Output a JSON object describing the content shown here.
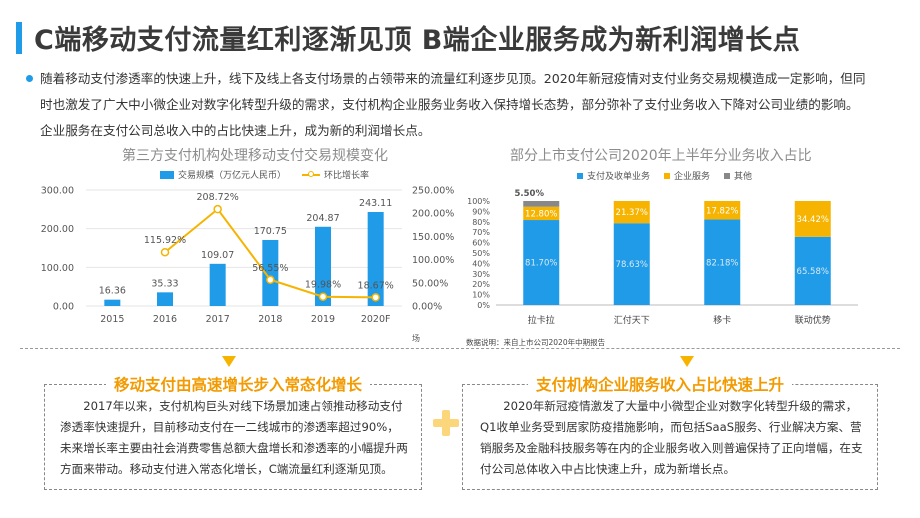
{
  "header": {
    "title": "C端移动支付流量红利逐渐见顶 B端企业服务成为新利润增长点"
  },
  "intro": {
    "text": "随着移动支付渗透率的快速上升，线下及线上各支付场景的占领带来的流量红利逐步见顶。2020年新冠疫情对支付业务交易规模造成一定影响，但同时也激发了广大中小微企业对数字化转型升级的需求，支付机构企业服务业务收入保持增长态势，部分弥补了支付业务收入下降对公司业绩的影响。企业服务在支付公司总收入中的占比快速上升，成为新的利润增长点。"
  },
  "colors": {
    "blue": "#1f9be8",
    "orange": "#f6b400",
    "gray": "#888888",
    "heading_orange": "#f29a00"
  },
  "left_chart": {
    "legend_bar": "交易规模（万亿元人民币）",
    "legend_line": "环比增长率",
    "stray_label": "场",
    "chart_data": {
      "type": "bar+line",
      "title": "第三方支付机构处理移动支付交易规模变化",
      "categories": [
        "2015",
        "2016",
        "2017",
        "2018",
        "2019",
        "2020F"
      ],
      "series": [
        {
          "name": "交易规模（万亿元人民币）",
          "axis": "left",
          "values": [
            16.36,
            35.33,
            109.07,
            170.75,
            204.87,
            243.11
          ],
          "labels": [
            "16.36",
            "35.33",
            "109.07",
            "170.75",
            "204.87",
            "243.11"
          ]
        },
        {
          "name": "环比增长率",
          "axis": "right",
          "values": [
            null,
            115.92,
            208.72,
            56.55,
            19.98,
            18.67
          ],
          "labels": [
            "",
            "115.92%",
            "208.72%",
            "56.55%",
            "19.98%",
            "18.67%"
          ]
        }
      ],
      "ylim_left": [
        0,
        300
      ],
      "yticks_left": [
        "0.00",
        "100.00",
        "200.00",
        "300.00"
      ],
      "ylim_right": [
        0,
        250
      ],
      "yticks_right": [
        "0.00%",
        "50.00%",
        "100.00%",
        "150.00%",
        "200.00%",
        "250.00%"
      ]
    }
  },
  "right_chart": {
    "note": "数据说明：来自上市公司2020年中期报告",
    "chart_data": {
      "type": "stacked_bar_100",
      "title": "部分上市支付公司2020年上半年分业务收入占比",
      "categories": [
        "拉卡拉",
        "汇付天下",
        "移卡",
        "联动优势"
      ],
      "series": [
        {
          "name": "支付及收单业务",
          "values": [
            81.7,
            78.63,
            82.18,
            65.58
          ],
          "labels": [
            "81.70%",
            "78.63%",
            "82.18%",
            "65.58%"
          ]
        },
        {
          "name": "企业服务",
          "values": [
            12.8,
            21.37,
            17.82,
            34.42
          ],
          "labels": [
            "12.80%",
            "21.37%",
            "17.82%",
            "34.42%"
          ]
        },
        {
          "name": "其他",
          "values": [
            5.5,
            0,
            0,
            0
          ],
          "labels": [
            "5.50%",
            "",
            "",
            ""
          ]
        }
      ],
      "ylim": [
        0,
        100
      ],
      "yticks": [
        "0%",
        "10%",
        "20%",
        "30%",
        "40%",
        "50%",
        "60%",
        "70%",
        "80%",
        "90%",
        "100%"
      ]
    }
  },
  "left_box": {
    "heading": "移动支付由高速增长步入常态化增长",
    "text": "2017年以来，支付机构巨头对线下场景加速占领推动移动支付渗透率快速提升，目前移动支付在一二线城市的渗透率超过90%，未来增长率主要由社会消费零售总额大盘增长和渗透率的小幅提升两方面来带动。移动支付进入常态化增长，C端流量红利逐渐见顶。"
  },
  "right_box": {
    "heading": "支付机构企业服务收入占比快速上升",
    "text": "2020年新冠疫情激发了大量中小微型企业对数字化转型升级的需求，Q1收单业务受到居家防疫措施影响，而包括SaaS服务、行业解决方案、营销服务及金融科技服务等在内的企业服务收入则普遍保持了正向增幅，在支付公司总体收入中占比快速上升，成为新增长点。"
  }
}
